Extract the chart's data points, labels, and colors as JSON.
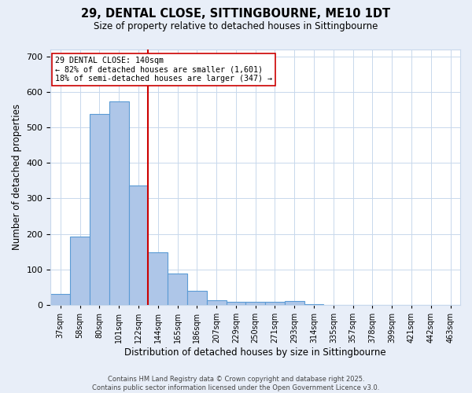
{
  "title": "29, DENTAL CLOSE, SITTINGBOURNE, ME10 1DT",
  "subtitle": "Size of property relative to detached houses in Sittingbourne",
  "xlabel": "Distribution of detached houses by size in Sittingbourne",
  "ylabel": "Number of detached properties",
  "bin_labels": [
    "37sqm",
    "58sqm",
    "80sqm",
    "101sqm",
    "122sqm",
    "144sqm",
    "165sqm",
    "186sqm",
    "207sqm",
    "229sqm",
    "250sqm",
    "271sqm",
    "293sqm",
    "314sqm",
    "335sqm",
    "357sqm",
    "378sqm",
    "399sqm",
    "421sqm",
    "442sqm",
    "463sqm"
  ],
  "bar_heights": [
    32,
    193,
    537,
    572,
    336,
    148,
    88,
    41,
    13,
    9,
    9,
    9,
    11,
    3,
    0,
    0,
    0,
    0,
    0,
    0,
    0
  ],
  "bar_color": "#aec6e8",
  "bar_edge_color": "#5b9bd5",
  "vline_color": "#cc0000",
  "annotation_line1": "29 DENTAL CLOSE: 140sqm",
  "annotation_line2": "← 82% of detached houses are smaller (1,601)",
  "annotation_line3": "18% of semi-detached houses are larger (347) →",
  "annotation_box_color": "#ffffff",
  "annotation_box_edge": "#cc0000",
  "footer_line1": "Contains HM Land Registry data © Crown copyright and database right 2025.",
  "footer_line2": "Contains public sector information licensed under the Open Government Licence v3.0.",
  "bg_color": "#e8eef8",
  "plot_bg_color": "#ffffff",
  "ylim": [
    0,
    720
  ],
  "yticks": [
    0,
    100,
    200,
    300,
    400,
    500,
    600,
    700
  ]
}
